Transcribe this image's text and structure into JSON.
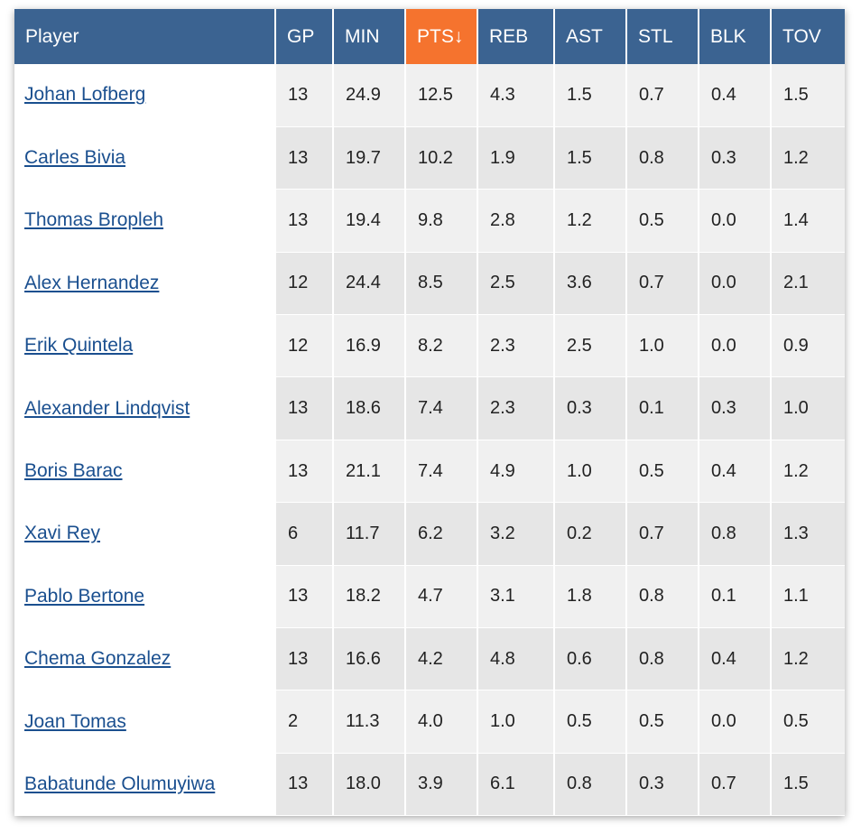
{
  "table": {
    "columns": [
      {
        "key": "player",
        "label": "Player"
      },
      {
        "key": "gp",
        "label": "GP"
      },
      {
        "key": "min",
        "label": "MIN"
      },
      {
        "key": "pts",
        "label": "PTS↓"
      },
      {
        "key": "reb",
        "label": "REB"
      },
      {
        "key": "ast",
        "label": "AST"
      },
      {
        "key": "stl",
        "label": "STL"
      },
      {
        "key": "blk",
        "label": "BLK"
      },
      {
        "key": "tov",
        "label": "TOV"
      }
    ],
    "sorted_column": "pts",
    "rows": [
      [
        "Johan Lofberg",
        "13",
        "24.9",
        "12.5",
        "4.3",
        "1.5",
        "0.7",
        "0.4",
        "1.5"
      ],
      [
        "Carles Bivia",
        "13",
        "19.7",
        "10.2",
        "1.9",
        "1.5",
        "0.8",
        "0.3",
        "1.2"
      ],
      [
        "Thomas Bropleh",
        "13",
        "19.4",
        "9.8",
        "2.8",
        "1.2",
        "0.5",
        "0.0",
        "1.4"
      ],
      [
        "Alex Hernandez",
        "12",
        "24.4",
        "8.5",
        "2.5",
        "3.6",
        "0.7",
        "0.0",
        "2.1"
      ],
      [
        "Erik Quintela",
        "12",
        "16.9",
        "8.2",
        "2.3",
        "2.5",
        "1.0",
        "0.0",
        "0.9"
      ],
      [
        "Alexander Lindqvist",
        "13",
        "18.6",
        "7.4",
        "2.3",
        "0.3",
        "0.1",
        "0.3",
        "1.0"
      ],
      [
        "Boris Barac",
        "13",
        "21.1",
        "7.4",
        "4.9",
        "1.0",
        "0.5",
        "0.4",
        "1.2"
      ],
      [
        "Xavi Rey",
        "6",
        "11.7",
        "6.2",
        "3.2",
        "0.2",
        "0.7",
        "0.8",
        "1.3"
      ],
      [
        "Pablo Bertone",
        "13",
        "18.2",
        "4.7",
        "3.1",
        "1.8",
        "0.8",
        "0.1",
        "1.1"
      ],
      [
        "Chema Gonzalez",
        "13",
        "16.6",
        "4.2",
        "4.8",
        "0.6",
        "0.8",
        "0.4",
        "1.2"
      ],
      [
        "Joan Tomas",
        "2",
        "11.3",
        "4.0",
        "1.0",
        "0.5",
        "0.5",
        "0.0",
        "0.5"
      ],
      [
        "Babatunde Olumuyiwa",
        "13",
        "18.0",
        "3.9",
        "6.1",
        "0.8",
        "0.3",
        "0.7",
        "1.5"
      ]
    ]
  },
  "colors": {
    "header": "#3b6391",
    "sorted_header": "#f5732e",
    "link": "#1a4f8f",
    "row_odd": "#f0f0f0",
    "row_even": "#e6e6e6"
  }
}
